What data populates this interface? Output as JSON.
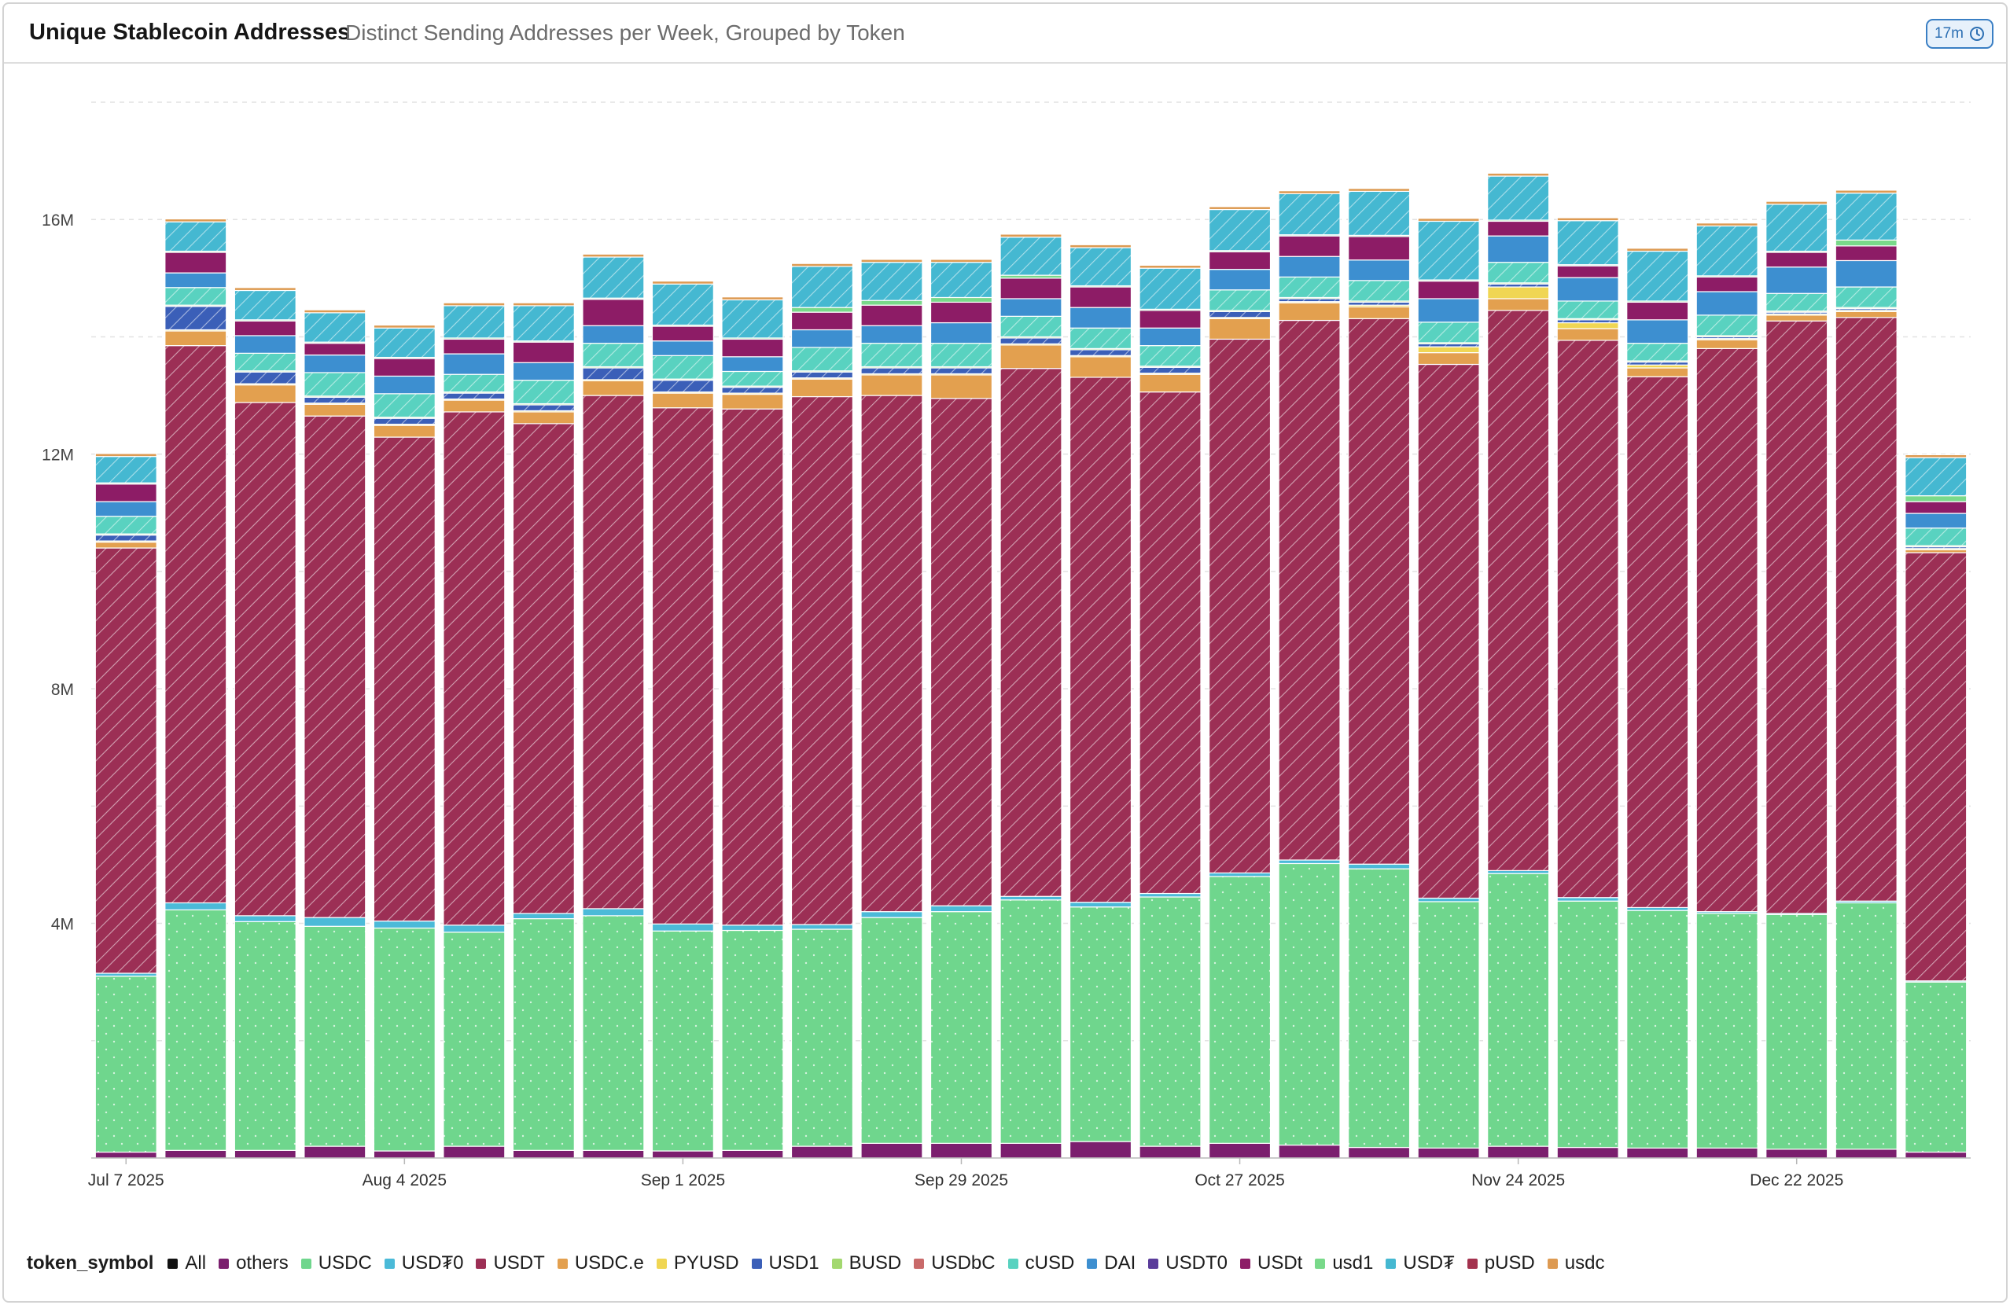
{
  "header": {
    "title": "Unique Stablecoin Addresses",
    "subtitle": "Distinct Sending Addresses per Week, Grouped by Token",
    "refresh_label": "17m"
  },
  "legend": {
    "title": "token_symbol",
    "items": [
      {
        "label": "All",
        "color": "#111111"
      },
      {
        "label": "others",
        "color": "#7b1f6e"
      },
      {
        "label": "USDC",
        "color": "#6fd68d"
      },
      {
        "label": "USD₮0",
        "color": "#4bbad8"
      },
      {
        "label": "USDT",
        "color": "#9c2f55"
      },
      {
        "label": "USDC.e",
        "color": "#e3a04f"
      },
      {
        "label": "PYUSD",
        "color": "#f0d653"
      },
      {
        "label": "USD1",
        "color": "#3b5fb8"
      },
      {
        "label": "BUSD",
        "color": "#a3d86f"
      },
      {
        "label": "USDbC",
        "color": "#c96a6a"
      },
      {
        "label": "cUSD",
        "color": "#59d2c0"
      },
      {
        "label": "DAI",
        "color": "#3d8fd0"
      },
      {
        "label": "USDT0",
        "color": "#5a3c9a"
      },
      {
        "label": "USDt",
        "color": "#8d1c66"
      },
      {
        "label": "usd1",
        "color": "#79d98a"
      },
      {
        "label": "USD₮",
        "color": "#45b8d1"
      },
      {
        "label": "pUSD",
        "color": "#a3324e"
      },
      {
        "label": "usdc",
        "color": "#dd9a52"
      }
    ]
  },
  "chart_data": {
    "type": "bar",
    "stacked": true,
    "ylim": [
      0,
      18000000
    ],
    "yticks": [
      4000000,
      8000000,
      12000000,
      16000000
    ],
    "ytick_labels": [
      "4M",
      "8M",
      "12M",
      "16M"
    ],
    "xtick_labels": [
      {
        "index": 0,
        "label": "Jul 7 2025"
      },
      {
        "index": 4,
        "label": "Aug 4 2025"
      },
      {
        "index": 8,
        "label": "Sep 1 2025"
      },
      {
        "index": 12,
        "label": "Sep 29 2025"
      },
      {
        "index": 16,
        "label": "Oct 27 2025"
      },
      {
        "index": 20,
        "label": "Nov 24 2025"
      },
      {
        "index": 24,
        "label": "Dec 22 2025"
      }
    ],
    "categories": [
      "Jul 7 2025",
      "Jul 14 2025",
      "Jul 21 2025",
      "Jul 28 2025",
      "Aug 4 2025",
      "Aug 11 2025",
      "Aug 18 2025",
      "Aug 25 2025",
      "Sep 1 2025",
      "Sep 8 2025",
      "Sep 15 2025",
      "Sep 22 2025",
      "Sep 29 2025",
      "Oct 6 2025",
      "Oct 13 2025",
      "Oct 20 2025",
      "Oct 27 2025",
      "Nov 3 2025",
      "Nov 10 2025",
      "Nov 17 2025",
      "Nov 24 2025",
      "Dec 1 2025",
      "Dec 8 2025",
      "Dec 15 2025",
      "Dec 22 2025",
      "Dec 29 2025",
      "Jan 5 2026"
    ],
    "grid": true,
    "series": [
      {
        "name": "others",
        "color": "#7b1f6e",
        "pattern": "solid",
        "values": [
          100000,
          130000,
          130000,
          200000,
          120000,
          200000,
          130000,
          130000,
          120000,
          130000,
          200000,
          250000,
          250000,
          250000,
          280000,
          200000,
          250000,
          220000,
          180000,
          170000,
          200000,
          180000,
          170000,
          170000,
          150000,
          150000,
          100000
        ]
      },
      {
        "name": "USDC",
        "color": "#6fd68d",
        "pattern": "dots",
        "values": [
          3000000,
          4100000,
          3900000,
          3750000,
          3800000,
          3650000,
          3950000,
          4000000,
          3750000,
          3750000,
          3700000,
          3850000,
          3950000,
          4150000,
          4000000,
          4250000,
          4550000,
          4800000,
          4750000,
          4200000,
          4650000,
          4200000,
          4050000,
          4000000,
          4000000,
          4200000,
          2900000
        ]
      },
      {
        "name": "USD₮0",
        "color": "#4bbad8",
        "pattern": "solid",
        "values": [
          50000,
          120000,
          100000,
          150000,
          120000,
          120000,
          90000,
          120000,
          120000,
          90000,
          80000,
          100000,
          100000,
          60000,
          80000,
          60000,
          60000,
          60000,
          80000,
          60000,
          50000,
          60000,
          50000,
          30000,
          20000,
          30000,
          20000
        ]
      },
      {
        "name": "USDT",
        "color": "#9c2f55",
        "pattern": "hatch",
        "values": [
          7250000,
          9500000,
          8750000,
          8550000,
          8250000,
          8750000,
          8350000,
          8750000,
          8800000,
          8800000,
          9000000,
          8800000,
          8650000,
          9000000,
          8950000,
          8550000,
          9100000,
          9200000,
          9300000,
          9100000,
          9550000,
          9500000,
          9050000,
          9600000,
          10100000,
          9950000,
          7300000
        ]
      },
      {
        "name": "USDC.e",
        "color": "#e3a04f",
        "pattern": "solid",
        "values": [
          100000,
          250000,
          300000,
          200000,
          200000,
          200000,
          200000,
          250000,
          250000,
          250000,
          300000,
          350000,
          400000,
          400000,
          350000,
          300000,
          350000,
          300000,
          200000,
          200000,
          200000,
          200000,
          150000,
          150000,
          100000,
          100000,
          50000
        ]
      },
      {
        "name": "PYUSD",
        "color": "#f0d653",
        "pattern": "solid",
        "values": [
          20000,
          20000,
          20000,
          20000,
          20000,
          20000,
          20000,
          20000,
          20000,
          20000,
          20000,
          20000,
          20000,
          20000,
          20000,
          20000,
          20000,
          20000,
          30000,
          100000,
          200000,
          100000,
          50000,
          20000,
          20000,
          20000,
          20000
        ]
      },
      {
        "name": "USD1",
        "color": "#3b5fb8",
        "pattern": "hatch",
        "values": [
          100000,
          400000,
          200000,
          100000,
          100000,
          100000,
          100000,
          200000,
          200000,
          100000,
          100000,
          100000,
          100000,
          100000,
          100000,
          100000,
          100000,
          50000,
          50000,
          50000,
          50000,
          50000,
          50000,
          30000,
          30000,
          30000,
          30000
        ]
      },
      {
        "name": "BUSD",
        "color": "#a3d86f",
        "pattern": "solid",
        "values": [
          20000,
          20000,
          20000,
          20000,
          20000,
          20000,
          20000,
          20000,
          20000,
          20000,
          20000,
          20000,
          20000,
          20000,
          20000,
          20000,
          20000,
          20000,
          20000,
          20000,
          20000,
          20000,
          20000,
          20000,
          20000,
          20000,
          20000
        ]
      },
      {
        "name": "cUSD",
        "color": "#59d2c0",
        "pattern": "hatch",
        "values": [
          300000,
          300000,
          300000,
          400000,
          400000,
          300000,
          400000,
          400000,
          400000,
          250000,
          400000,
          400000,
          400000,
          350000,
          350000,
          350000,
          350000,
          350000,
          350000,
          350000,
          350000,
          300000,
          300000,
          350000,
          300000,
          350000,
          300000
        ]
      },
      {
        "name": "DAI",
        "color": "#3d8fd0",
        "pattern": "solid",
        "values": [
          250000,
          250000,
          300000,
          300000,
          300000,
          350000,
          300000,
          300000,
          250000,
          250000,
          300000,
          300000,
          350000,
          300000,
          350000,
          300000,
          350000,
          350000,
          350000,
          400000,
          450000,
          400000,
          400000,
          400000,
          450000,
          450000,
          250000
        ]
      },
      {
        "name": "USDt",
        "color": "#8d1c66",
        "pattern": "solid",
        "values": [
          300000,
          350000,
          250000,
          200000,
          300000,
          250000,
          350000,
          450000,
          250000,
          300000,
          300000,
          350000,
          350000,
          350000,
          350000,
          300000,
          300000,
          350000,
          400000,
          300000,
          250000,
          200000,
          300000,
          250000,
          250000,
          250000,
          200000
        ]
      },
      {
        "name": "usd1",
        "color": "#79d98a",
        "pattern": "solid",
        "values": [
          20000,
          20000,
          20000,
          20000,
          20000,
          20000,
          20000,
          20000,
          20000,
          20000,
          80000,
          80000,
          80000,
          50000,
          20000,
          20000,
          20000,
          20000,
          20000,
          20000,
          20000,
          20000,
          20000,
          20000,
          20000,
          100000,
          100000
        ]
      },
      {
        "name": "USD₮",
        "color": "#45b8d1",
        "pattern": "hatch",
        "values": [
          450000,
          500000,
          500000,
          500000,
          500000,
          550000,
          600000,
          700000,
          700000,
          650000,
          700000,
          650000,
          600000,
          650000,
          650000,
          700000,
          700000,
          700000,
          750000,
          1000000,
          750000,
          750000,
          850000,
          850000,
          800000,
          800000,
          650000
        ]
      },
      {
        "name": "usdc",
        "color": "#dd9a52",
        "pattern": "solid",
        "values": [
          50000,
          50000,
          50000,
          50000,
          50000,
          50000,
          50000,
          50000,
          50000,
          50000,
          50000,
          50000,
          50000,
          50000,
          50000,
          50000,
          50000,
          50000,
          50000,
          50000,
          50000,
          50000,
          50000,
          50000,
          50000,
          50000,
          50000
        ]
      }
    ]
  }
}
